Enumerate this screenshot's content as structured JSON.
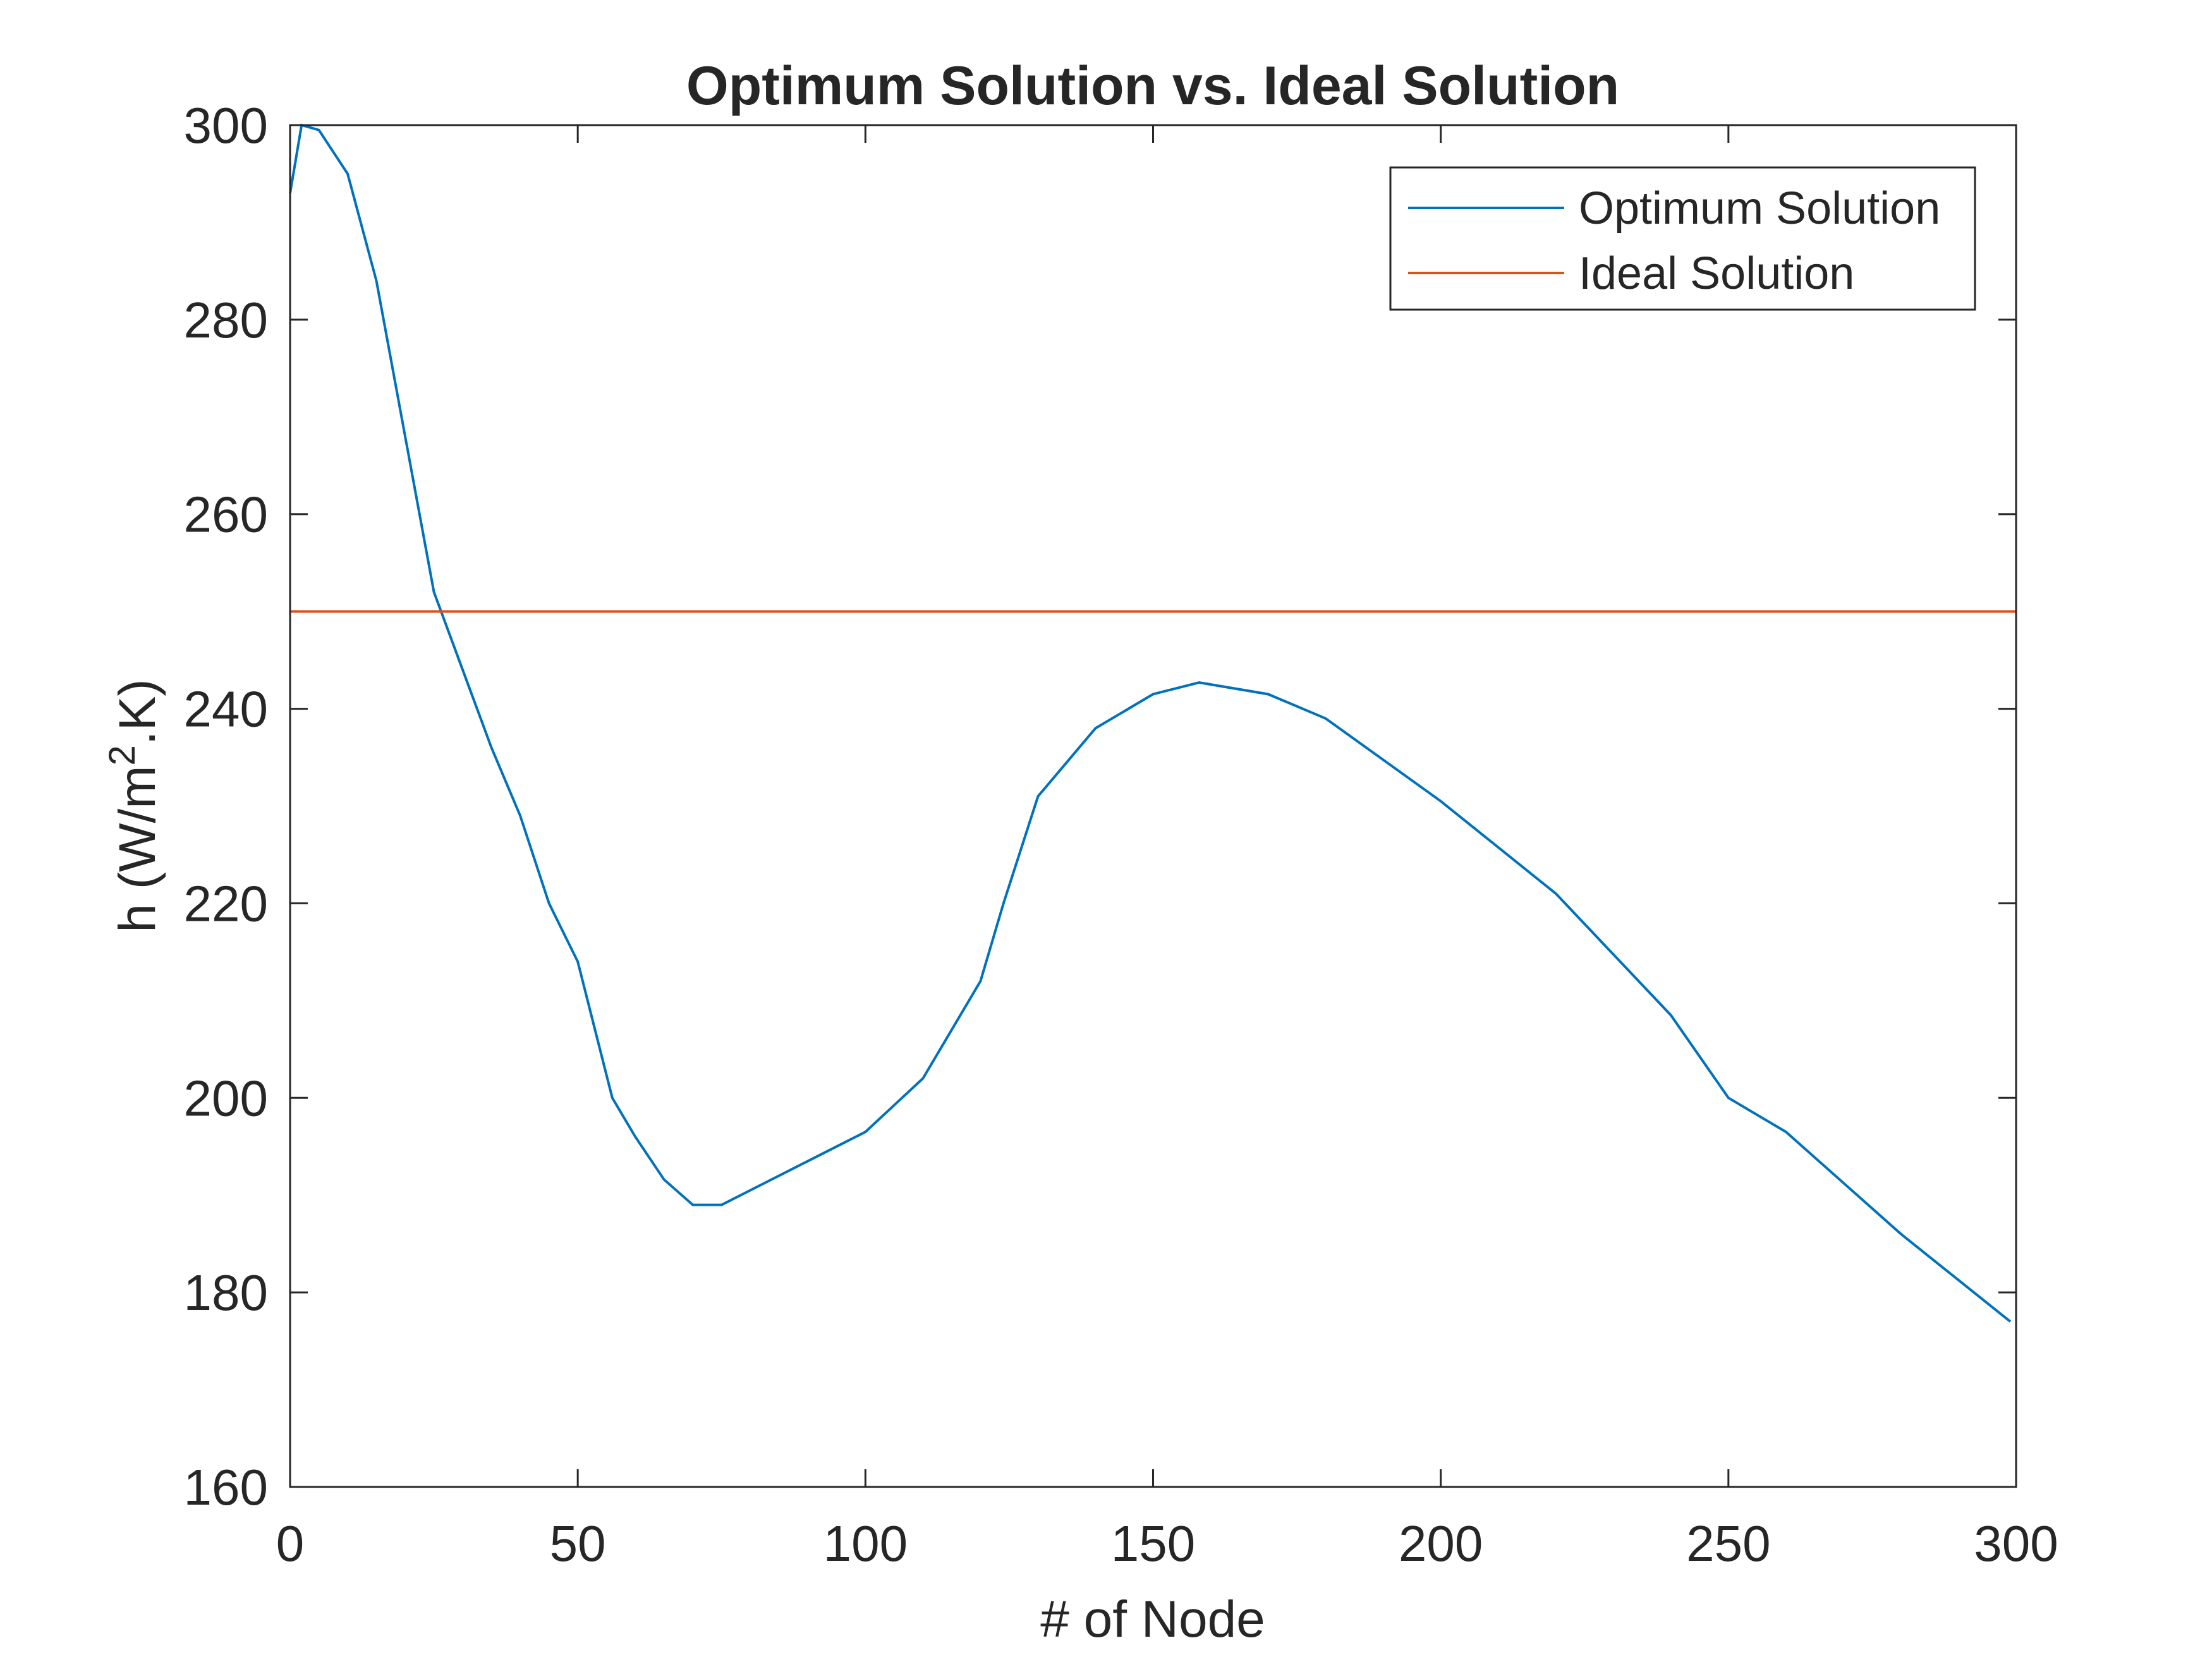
{
  "chart_data": {
    "type": "line",
    "title": "Optimum Solution vs. Ideal Solution",
    "xlabel": "# of Node",
    "ylabel_parts": [
      "h (W/m",
      "2",
      ".K)"
    ],
    "series": [
      {
        "name": "Optimum Solution",
        "color": "#0072bd",
        "x": [
          0,
          2,
          5,
          10,
          15,
          20,
          25,
          30,
          35,
          40,
          45,
          50,
          56,
          60,
          65,
          70,
          75,
          80,
          90,
          100,
          110,
          120,
          124,
          130,
          140,
          150,
          158,
          170,
          180,
          200,
          220,
          240,
          250,
          260,
          280,
          299
        ],
        "values": [
          293,
          300,
          299.5,
          295,
          284,
          268,
          252,
          244,
          236,
          229,
          220,
          214,
          200,
          196,
          191.6,
          189,
          189,
          190.5,
          193.5,
          196.5,
          202,
          212,
          220,
          231,
          238,
          241.5,
          242.7,
          241.5,
          239,
          230.5,
          221,
          208.5,
          200,
          196.5,
          186,
          177
        ]
      },
      {
        "name": "Ideal Solution",
        "color": "#d95319",
        "x": [
          0,
          300
        ],
        "values": [
          250,
          250
        ]
      }
    ],
    "xlim": [
      0,
      300
    ],
    "xticks": [
      0,
      50,
      100,
      150,
      200,
      250,
      300
    ],
    "ylim": [
      160,
      300
    ],
    "yticks": [
      160,
      180,
      200,
      220,
      240,
      260,
      280,
      300
    ],
    "legend": "upper right"
  }
}
